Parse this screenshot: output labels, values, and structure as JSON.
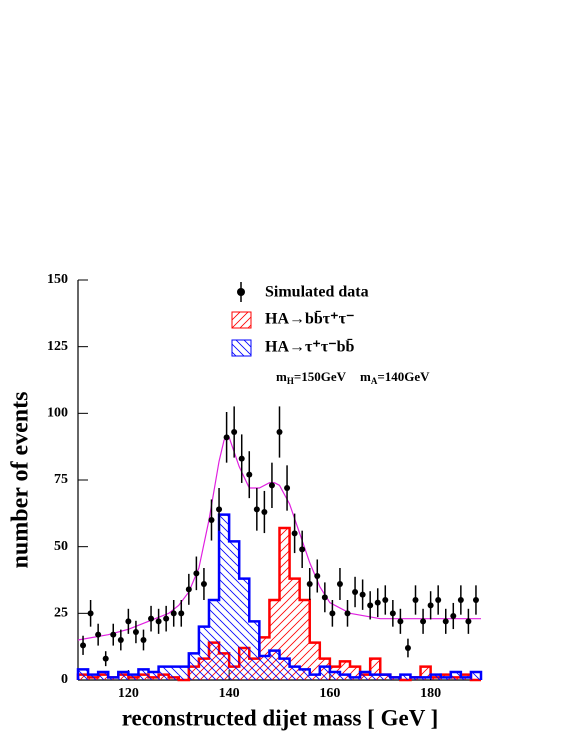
{
  "chart_data": {
    "type": "histogram",
    "x_label": "reconstructed dijet mass [ GeV ]",
    "y_label": "number of events",
    "xlim": [
      110,
      190
    ],
    "ylim": [
      0,
      150
    ],
    "xticks": [
      120,
      140,
      160,
      180
    ],
    "yticks": [
      0,
      25,
      50,
      75,
      100,
      125,
      150
    ],
    "bins": [
      110,
      112,
      114,
      116,
      118,
      120,
      122,
      124,
      126,
      128,
      130,
      132,
      134,
      136,
      138,
      140,
      142,
      144,
      146,
      148,
      150,
      152,
      154,
      156,
      158,
      160,
      162,
      164,
      166,
      168,
      170,
      172,
      174,
      176,
      178,
      180,
      182,
      184,
      186,
      188,
      190
    ],
    "series": [
      {
        "name": "HA→bb̄τ⁺τ⁻",
        "color": "#ff0000",
        "hatch": "/",
        "values": [
          2,
          1,
          2,
          1,
          2,
          1,
          2,
          1,
          2,
          1,
          0,
          5,
          8,
          14,
          10,
          5,
          12,
          8,
          16,
          30,
          57,
          38,
          30,
          14,
          8,
          5,
          7,
          5,
          2,
          8,
          2,
          1,
          0,
          1,
          5,
          1,
          2,
          1,
          2,
          0
        ]
      },
      {
        "name": "HA→τ⁺τ⁻bb̄",
        "color": "#0000ff",
        "hatch": "\\",
        "values": [
          4,
          2,
          3,
          1,
          3,
          2,
          4,
          3,
          5,
          5,
          5,
          10,
          20,
          30,
          62,
          52,
          38,
          22,
          9,
          11,
          8,
          5,
          4,
          2,
          5,
          3,
          2,
          1,
          3,
          2,
          2,
          1,
          2,
          1,
          1,
          2,
          1,
          3,
          1,
          3
        ]
      }
    ],
    "data_points": {
      "name": "Simulated data",
      "color": "#000000",
      "x": [
        111,
        112.5,
        114,
        115.5,
        117,
        118.5,
        120,
        121.5,
        123,
        124.5,
        126,
        127.5,
        129,
        130.5,
        132,
        133.5,
        135,
        136.5,
        138,
        139.5,
        141,
        142.5,
        144,
        145.5,
        147,
        148.5,
        150,
        151.5,
        153,
        154.5,
        156,
        157.5,
        159,
        160.5,
        162,
        163.5,
        165,
        166.5,
        168,
        169.5,
        171,
        172.5,
        174,
        175.5,
        177,
        178.5,
        180,
        181.5,
        183,
        184.5,
        186,
        187.5,
        189
      ],
      "values": [
        13,
        25,
        17,
        8,
        17,
        15,
        22,
        18,
        15,
        23,
        22,
        23,
        25,
        25,
        34,
        40,
        36,
        60,
        64,
        91,
        93,
        83,
        77,
        64,
        63,
        73,
        93,
        72,
        55,
        49,
        36,
        39,
        31,
        25,
        36,
        25,
        33,
        32,
        28,
        29,
        30,
        25,
        22,
        12,
        30,
        22,
        28,
        30,
        22,
        24,
        30,
        22,
        30
      ],
      "errors": [
        3.6,
        5,
        4.1,
        2.8,
        4.1,
        3.9,
        4.7,
        4.2,
        3.9,
        4.8,
        4.7,
        4.8,
        5,
        5,
        5.8,
        6.3,
        6,
        7.7,
        8,
        9.5,
        9.6,
        9.1,
        8.8,
        8,
        7.9,
        8.5,
        9.6,
        8.5,
        7.4,
        7,
        6,
        6.2,
        5.6,
        5,
        6,
        5,
        5.7,
        5.7,
        5.3,
        5.4,
        5.5,
        5,
        4.7,
        3.5,
        5.5,
        4.7,
        5.3,
        5.5,
        4.7,
        4.9,
        5.5,
        4.7,
        5.5
      ]
    },
    "fit": {
      "color": "#e020e0",
      "x": [
        110,
        116,
        120,
        124,
        128,
        130,
        132,
        134,
        136,
        138,
        139,
        140,
        142,
        144,
        146,
        148,
        149,
        150,
        152,
        154,
        156,
        158,
        160,
        164,
        170,
        180,
        190
      ],
      "values": [
        15,
        17,
        19,
        22,
        25,
        28,
        33,
        42,
        60,
        82,
        90,
        91,
        80,
        72,
        72,
        74,
        74,
        73,
        66,
        55,
        44,
        35,
        29,
        25,
        23,
        23,
        23
      ]
    },
    "annotation": [
      {
        "symbol": "m",
        "sub": "H",
        "text": "=150GeV"
      },
      {
        "symbol": "m",
        "sub": "A",
        "text": "=140GeV"
      }
    ]
  }
}
